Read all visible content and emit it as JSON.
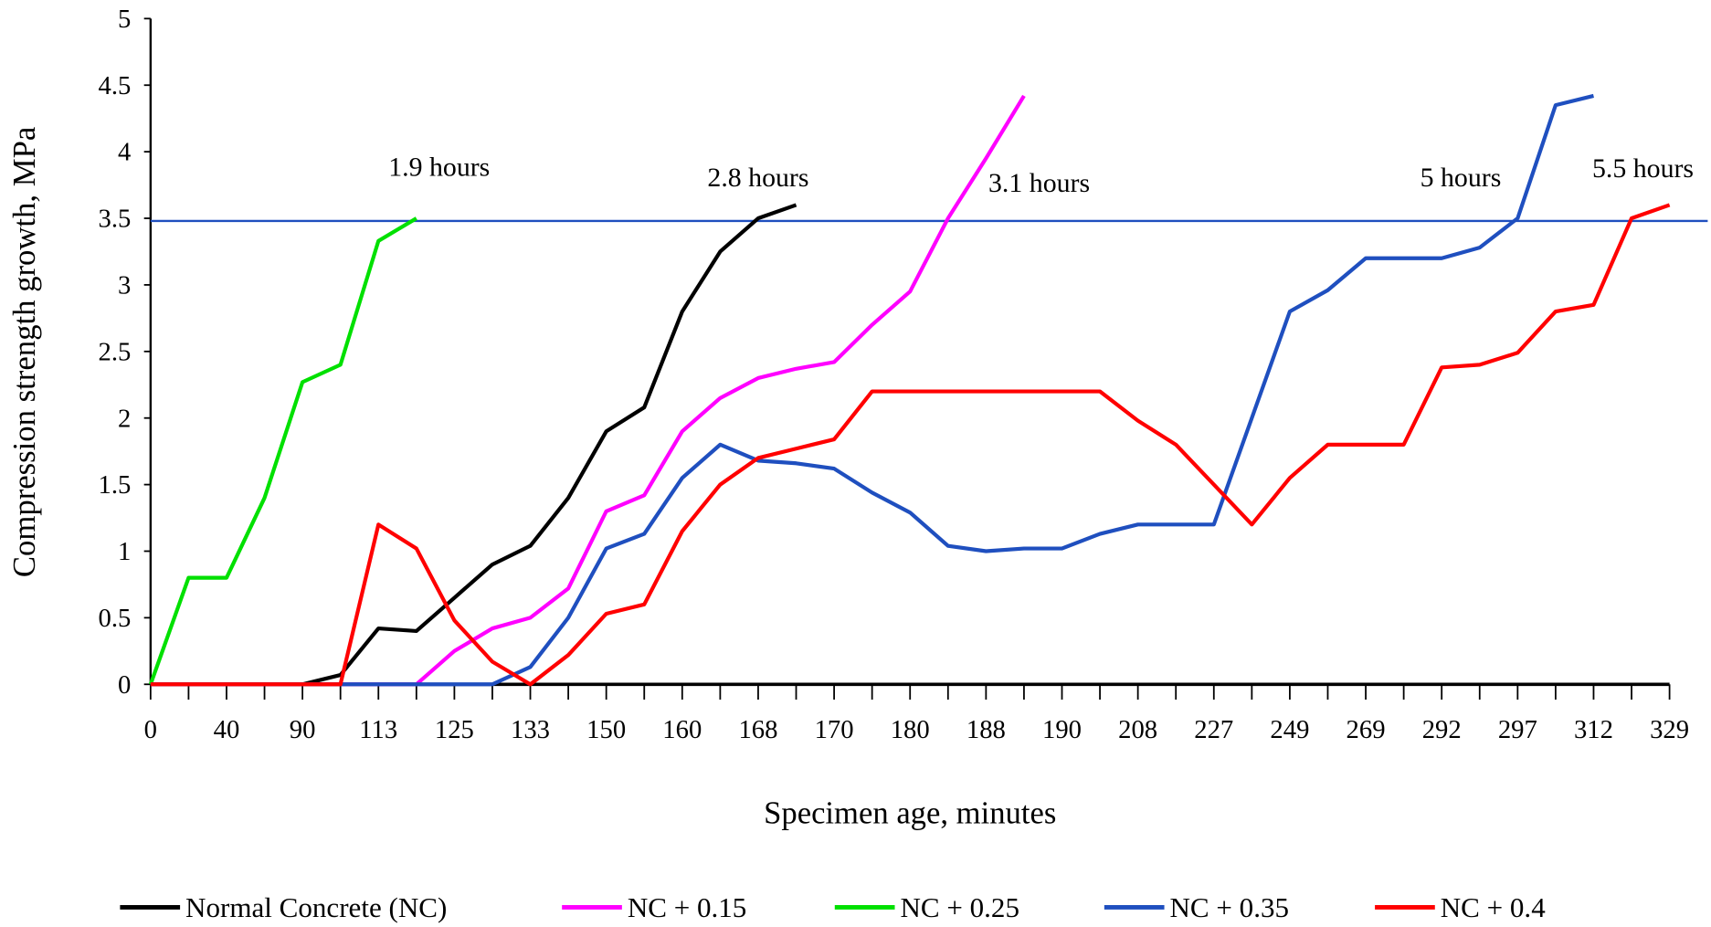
{
  "chart_data": {
    "type": "line",
    "title": "",
    "xlabel": "Specimen age, minutes",
    "ylabel": "Compression  strength growth, MPa",
    "ylim": [
      0,
      5
    ],
    "yticks": [
      "0",
      "0.5",
      "1",
      "1.5",
      "2",
      "2.5",
      "3",
      "3.5",
      "4",
      "4.5",
      "5"
    ],
    "x_ticklabels": [
      "0",
      "40",
      "90",
      "113",
      "125",
      "133",
      "150",
      "160",
      "168",
      "170",
      "180",
      "188",
      "190",
      "208",
      "227",
      "249",
      "269",
      "292",
      "297",
      "312",
      "329"
    ],
    "grid": false,
    "legend_position": "bottom",
    "reference_line": {
      "y": 3.48,
      "color": "#1f4fbf"
    },
    "annotations": [
      {
        "text": "1.9 hours",
        "x_index": 7.6,
        "y": 3.82
      },
      {
        "text": "2.8 hours",
        "x_index": 16.0,
        "y": 3.74
      },
      {
        "text": "3.1 hours",
        "x_index": 23.4,
        "y": 3.7
      },
      {
        "text": "5 hours",
        "x_index": 34.5,
        "y": 3.74
      },
      {
        "text": "5.5 hours",
        "x_index": 39.3,
        "y": 3.81
      }
    ],
    "series": [
      {
        "name": "Normal Concrete (NC)",
        "color": "#000000",
        "values": [
          0,
          0,
          0,
          0,
          0,
          0.07,
          0.42,
          0.4,
          0.65,
          0.9,
          1.04,
          1.4,
          1.9,
          2.08,
          2.8,
          3.25,
          3.5,
          3.6
        ]
      },
      {
        "name": "NC + 0.15",
        "color": "#ff00ff",
        "values": [
          0,
          0,
          0,
          0,
          0,
          0,
          0,
          0,
          0.25,
          0.42,
          0.5,
          0.72,
          1.3,
          1.42,
          1.9,
          2.15,
          2.3,
          2.37,
          2.42,
          2.7,
          2.95,
          3.5,
          3.95,
          4.42
        ]
      },
      {
        "name": "NC + 0.25",
        "color": "#00e000",
        "values": [
          0,
          0.8,
          0.8,
          1.4,
          2.27,
          2.4,
          3.33,
          3.5
        ]
      },
      {
        "name": "NC + 0.35",
        "color": "#1f4fbf",
        "values": [
          0,
          0,
          0,
          0,
          0,
          0,
          0,
          0,
          0,
          0,
          0.13,
          0.5,
          1.02,
          1.13,
          1.55,
          1.8,
          1.68,
          1.66,
          1.62,
          1.44,
          1.29,
          1.04,
          1.0,
          1.02,
          1.02,
          1.13,
          1.2,
          1.2,
          1.2,
          2.0,
          2.8,
          2.96,
          3.2,
          3.2,
          3.2,
          3.28,
          3.5,
          4.35,
          4.42
        ]
      },
      {
        "name": "NC + 0.4",
        "color": "#ff0000",
        "values": [
          0,
          0,
          0,
          0,
          0,
          0,
          1.2,
          1.02,
          0.48,
          0.17,
          0,
          0.22,
          0.53,
          0.6,
          1.15,
          1.5,
          1.7,
          1.77,
          1.84,
          2.2,
          2.2,
          2.2,
          2.2,
          2.2,
          2.2,
          2.2,
          1.98,
          1.8,
          1.5,
          1.2,
          1.55,
          1.8,
          1.8,
          1.8,
          2.38,
          2.4,
          2.49,
          2.8,
          2.85,
          3.5,
          3.6
        ]
      }
    ]
  }
}
